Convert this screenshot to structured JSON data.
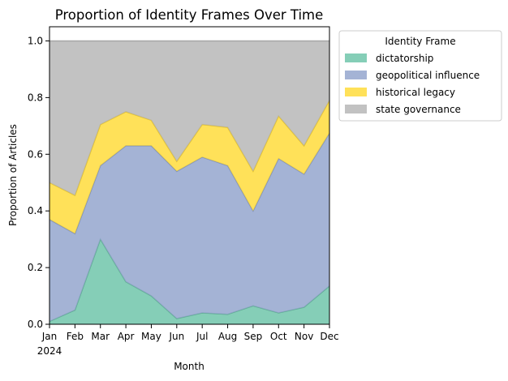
{
  "chart_data": {
    "type": "area",
    "stacked": true,
    "title": "Proportion of Identity Frames Over Time",
    "xlabel": "Month",
    "ylabel": "Proportion of Articles",
    "year_label": "2024",
    "categories": [
      "Jan",
      "Feb",
      "Mar",
      "Apr",
      "May",
      "Jun",
      "Jul",
      "Aug",
      "Sep",
      "Oct",
      "Nov",
      "Dec"
    ],
    "ylim": [
      0,
      1.05
    ],
    "yticks": [
      "0.0",
      "0.2",
      "0.4",
      "0.6",
      "0.8",
      "1.0"
    ],
    "grid": false,
    "legend": {
      "title": "Identity Frame",
      "placement": "outside-top-right"
    },
    "series": [
      {
        "name": "dictatorship",
        "color": "#66c2a5",
        "values": [
          0.01,
          0.05,
          0.3,
          0.15,
          0.1,
          0.02,
          0.04,
          0.035,
          0.065,
          0.04,
          0.06,
          0.135
        ]
      },
      {
        "name": "geopolitical influence",
        "color": "#8da0cb",
        "values": [
          0.36,
          0.27,
          0.26,
          0.48,
          0.53,
          0.52,
          0.55,
          0.525,
          0.335,
          0.545,
          0.47,
          0.54
        ]
      },
      {
        "name": "historical legacy",
        "color": "#ffd92f",
        "values": [
          0.13,
          0.135,
          0.145,
          0.12,
          0.09,
          0.035,
          0.115,
          0.135,
          0.14,
          0.15,
          0.1,
          0.115
        ]
      },
      {
        "name": "state governance",
        "color": "#b3b3b3",
        "values": [
          0.5,
          0.545,
          0.295,
          0.25,
          0.28,
          0.425,
          0.295,
          0.305,
          0.46,
          0.265,
          0.37,
          0.21
        ]
      }
    ]
  }
}
